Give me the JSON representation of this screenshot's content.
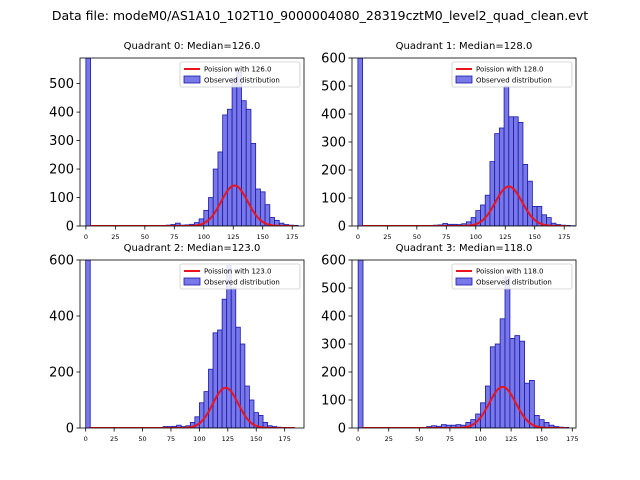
{
  "figure": {
    "suptitle": "Data file: modeM0/AS1A10_102T10_9000004080_28319cztM0_level2_quad_clean.evt"
  },
  "colors": {
    "hist_fill": "#7878e8",
    "hist_edge": "#1a1aa8",
    "fit_line": "#e8141e"
  },
  "chart_data": [
    {
      "type": "bar",
      "title": "Quadrant 0: Median=126.0",
      "xlim": [
        -5,
        185
      ],
      "ylim": [
        0,
        590
      ],
      "xticks": [
        0,
        25,
        50,
        75,
        100,
        125,
        150,
        175
      ],
      "yticks": [
        0,
        100,
        200,
        300,
        400,
        500
      ],
      "legend": {
        "position": "top-right",
        "line_label": "Poission with 126.0",
        "bar_label": "Observed distribution"
      },
      "bin_width": 4,
      "zero_bin_height": 590,
      "poisson_mean": 126,
      "poisson_scale": 4000,
      "bins": [
        [
          60,
          2
        ],
        [
          64,
          2
        ],
        [
          68,
          3
        ],
        [
          72,
          5
        ],
        [
          76,
          10
        ],
        [
          80,
          3
        ],
        [
          84,
          4
        ],
        [
          88,
          6
        ],
        [
          92,
          12
        ],
        [
          96,
          25
        ],
        [
          100,
          55
        ],
        [
          104,
          100
        ],
        [
          108,
          200
        ],
        [
          112,
          260
        ],
        [
          116,
          390
        ],
        [
          120,
          410
        ],
        [
          124,
          520
        ],
        [
          128,
          540
        ],
        [
          132,
          440
        ],
        [
          136,
          410
        ],
        [
          140,
          290
        ],
        [
          144,
          130
        ],
        [
          148,
          120
        ],
        [
          152,
          75
        ],
        [
          156,
          30
        ],
        [
          160,
          20
        ],
        [
          164,
          10
        ],
        [
          168,
          5
        ],
        [
          172,
          3
        ],
        [
          176,
          2
        ]
      ]
    },
    {
      "type": "bar",
      "title": "Quadrant 1: Median=128.0",
      "xlim": [
        -5,
        185
      ],
      "ylim": [
        0,
        600
      ],
      "xticks": [
        0,
        25,
        50,
        75,
        100,
        125,
        150,
        175
      ],
      "yticks": [
        0,
        100,
        200,
        300,
        400,
        500,
        600
      ],
      "legend": {
        "position": "top-right",
        "line_label": "Poission with 128.0",
        "bar_label": "Observed distribution"
      },
      "bin_width": 4,
      "zero_bin_height": 600,
      "poisson_mean": 128,
      "poisson_scale": 4000,
      "bins": [
        [
          60,
          2
        ],
        [
          64,
          3
        ],
        [
          68,
          4
        ],
        [
          72,
          9
        ],
        [
          76,
          6
        ],
        [
          80,
          6
        ],
        [
          84,
          5
        ],
        [
          88,
          8
        ],
        [
          92,
          15
        ],
        [
          96,
          30
        ],
        [
          100,
          55
        ],
        [
          104,
          75
        ],
        [
          108,
          110
        ],
        [
          112,
          230
        ],
        [
          116,
          330
        ],
        [
          120,
          350
        ],
        [
          124,
          500
        ],
        [
          128,
          390
        ],
        [
          132,
          390
        ],
        [
          136,
          370
        ],
        [
          140,
          220
        ],
        [
          144,
          160
        ],
        [
          148,
          70
        ],
        [
          152,
          70
        ],
        [
          156,
          40
        ],
        [
          160,
          30
        ],
        [
          164,
          10
        ],
        [
          168,
          5
        ],
        [
          172,
          3
        ],
        [
          176,
          2
        ],
        [
          180,
          1
        ]
      ]
    },
    {
      "type": "bar",
      "title": "Quadrant 2: Median=123.0",
      "xlim": [
        -5,
        192
      ],
      "ylim": [
        0,
        600
      ],
      "xticks": [
        0,
        25,
        50,
        75,
        100,
        125,
        150,
        175
      ],
      "yticks": [
        0,
        200,
        400,
        600
      ],
      "legend": {
        "position": "top-right",
        "line_label": "Poission with 123.0",
        "bar_label": "Observed distribution"
      },
      "bin_width": 4,
      "zero_bin_height": 600,
      "poisson_mean": 123,
      "poisson_scale": 4000,
      "bins": [
        [
          60,
          2
        ],
        [
          64,
          2
        ],
        [
          68,
          5
        ],
        [
          72,
          5
        ],
        [
          76,
          6
        ],
        [
          80,
          10
        ],
        [
          84,
          5
        ],
        [
          88,
          8
        ],
        [
          92,
          20
        ],
        [
          96,
          40
        ],
        [
          100,
          90
        ],
        [
          104,
          130
        ],
        [
          108,
          210
        ],
        [
          112,
          340
        ],
        [
          116,
          350
        ],
        [
          120,
          460
        ],
        [
          124,
          580
        ],
        [
          128,
          500
        ],
        [
          132,
          360
        ],
        [
          136,
          300
        ],
        [
          140,
          150
        ],
        [
          144,
          100
        ],
        [
          148,
          55
        ],
        [
          152,
          45
        ],
        [
          156,
          20
        ],
        [
          160,
          8
        ],
        [
          164,
          5
        ],
        [
          168,
          3
        ],
        [
          172,
          2
        ]
      ]
    },
    {
      "type": "bar",
      "title": "Quadrant 3: Median=118.0",
      "xlim": [
        -5,
        178
      ],
      "ylim": [
        0,
        600
      ],
      "xticks": [
        0,
        25,
        50,
        75,
        100,
        125,
        150,
        175
      ],
      "yticks": [
        0,
        100,
        200,
        300,
        400,
        500,
        600
      ],
      "legend": {
        "position": "top-right",
        "line_label": "Poission with 118.0",
        "bar_label": "Observed distribution"
      },
      "bin_width": 4,
      "zero_bin_height": 600,
      "poisson_mean": 118,
      "poisson_scale": 4000,
      "bins": [
        [
          56,
          5
        ],
        [
          60,
          8
        ],
        [
          64,
          6
        ],
        [
          68,
          12
        ],
        [
          72,
          10
        ],
        [
          76,
          10
        ],
        [
          80,
          12
        ],
        [
          84,
          10
        ],
        [
          88,
          20
        ],
        [
          92,
          30
        ],
        [
          96,
          50
        ],
        [
          100,
          90
        ],
        [
          104,
          150
        ],
        [
          108,
          290
        ],
        [
          112,
          300
        ],
        [
          116,
          390
        ],
        [
          120,
          540
        ],
        [
          124,
          320
        ],
        [
          128,
          330
        ],
        [
          132,
          310
        ],
        [
          136,
          160
        ],
        [
          140,
          170
        ],
        [
          144,
          45
        ],
        [
          148,
          30
        ],
        [
          152,
          20
        ],
        [
          156,
          10
        ],
        [
          160,
          5
        ],
        [
          164,
          3
        ],
        [
          168,
          2
        ]
      ]
    }
  ]
}
